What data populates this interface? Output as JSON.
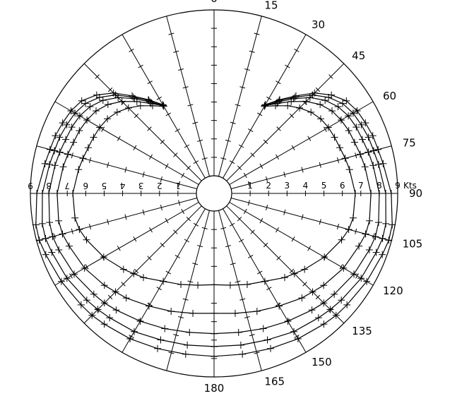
{
  "chart_data": {
    "type": "polar",
    "title": "",
    "radial_axis": {
      "unit": "Kts",
      "min": 1,
      "max": 9,
      "tick_labels": [
        "1",
        "2",
        "3",
        "4",
        "5",
        "6",
        "7",
        "8",
        "9"
      ]
    },
    "angular_axis": {
      "unit": "degrees",
      "range": [
        0,
        180
      ],
      "step": 15,
      "tick_labels": [
        "0",
        "15",
        "30",
        "45",
        "60",
        "75",
        "90",
        "105",
        "120",
        "135",
        "150",
        "165",
        "180"
      ]
    },
    "grid": true,
    "mirrored": true,
    "series": [
      {
        "angles": [
          30,
          35,
          40,
          45,
          50,
          55,
          60,
          65,
          70,
          75,
          80,
          90,
          100,
          105,
          110,
          120,
          130,
          135,
          140,
          150,
          160,
          170,
          180
        ],
        "values": [
          4.6,
          5.25,
          5.95,
          6.75,
          7.35,
          7.8,
          8.0,
          8.1,
          8.2,
          8.25,
          8.35,
          8.65,
          8.85,
          8.85,
          8.75,
          8.6,
          8.45,
          8.4,
          8.3,
          8.15,
          8.0,
          7.9,
          7.88
        ]
      },
      {
        "angles": [
          30,
          35,
          40,
          45,
          50,
          55,
          60,
          65,
          70,
          75,
          80,
          90,
          100,
          105,
          110,
          120,
          130,
          135,
          140,
          150,
          160,
          170,
          180
        ],
        "values": [
          4.6,
          5.2,
          5.85,
          6.6,
          7.15,
          7.55,
          7.75,
          7.85,
          7.95,
          8.0,
          8.1,
          8.35,
          8.5,
          8.5,
          8.4,
          8.25,
          8.05,
          7.95,
          7.85,
          7.7,
          7.5,
          7.4,
          7.35
        ]
      },
      {
        "angles": [
          30,
          35,
          40,
          45,
          50,
          55,
          60,
          65,
          70,
          75,
          80,
          90,
          100,
          105,
          110,
          120,
          130,
          135,
          140,
          150,
          160,
          170,
          180
        ],
        "values": [
          4.55,
          5.1,
          5.75,
          6.4,
          6.9,
          7.25,
          7.45,
          7.55,
          7.6,
          7.7,
          7.8,
          8.0,
          8.1,
          8.1,
          8.0,
          7.8,
          7.55,
          7.45,
          7.3,
          7.05,
          6.85,
          6.7,
          6.65
        ]
      },
      {
        "angles": [
          30,
          35,
          40,
          45,
          50,
          55,
          60,
          65,
          70,
          75,
          80,
          90,
          100,
          105,
          110,
          120,
          130,
          135,
          140,
          150,
          160,
          170,
          180
        ],
        "values": [
          4.55,
          5.0,
          5.55,
          6.1,
          6.55,
          6.85,
          7.0,
          7.1,
          7.15,
          7.25,
          7.35,
          7.55,
          7.6,
          7.55,
          7.4,
          7.15,
          6.8,
          6.6,
          6.45,
          6.1,
          5.85,
          5.65,
          5.55
        ]
      },
      {
        "angles": [
          30,
          35,
          40,
          45,
          50,
          55,
          60,
          65,
          70,
          75,
          80,
          90,
          100,
          105,
          110,
          120,
          130,
          135,
          140,
          150,
          160,
          170,
          180
        ],
        "values": [
          4.5,
          4.85,
          5.25,
          5.6,
          5.9,
          6.1,
          6.2,
          6.25,
          6.3,
          6.4,
          6.5,
          6.7,
          6.7,
          6.6,
          6.4,
          5.95,
          5.45,
          5.2,
          5.0,
          4.55,
          4.3,
          4.1,
          4.0
        ]
      }
    ]
  }
}
